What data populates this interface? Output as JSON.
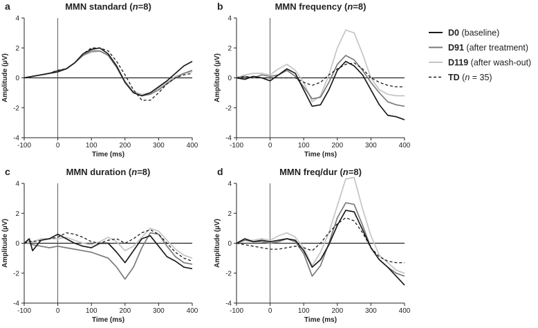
{
  "chart_data": [
    {
      "panel_label": "a",
      "title": "MMN standard (n=8)",
      "type": "line",
      "xlabel": "Time (ms)",
      "ylabel": "Amplitude (µV)",
      "xlim": [
        -100,
        400
      ],
      "ylim": [
        -4,
        4
      ],
      "xticks": [
        -100,
        0,
        100,
        200,
        300,
        400
      ],
      "yticks": [
        -4,
        -2,
        0,
        2,
        4
      ],
      "series": [
        {
          "name": "D0",
          "x": [
            -100,
            -75,
            -50,
            -25,
            0,
            25,
            50,
            75,
            100,
            125,
            150,
            175,
            200,
            225,
            250,
            275,
            300,
            325,
            350,
            375,
            400
          ],
          "y": [
            0,
            0.1,
            0.2,
            0.3,
            0.4,
            0.6,
            1.0,
            1.6,
            1.9,
            2.0,
            1.6,
            0.8,
            -0.3,
            -1.0,
            -1.2,
            -1.0,
            -0.6,
            -0.2,
            0.3,
            0.8,
            1.1
          ]
        },
        {
          "name": "D91",
          "x": [
            -100,
            -75,
            -50,
            -25,
            0,
            25,
            50,
            75,
            100,
            125,
            150,
            175,
            200,
            225,
            250,
            275,
            300,
            325,
            350,
            375,
            400
          ],
          "y": [
            0,
            0.1,
            0.2,
            0.3,
            0.5,
            0.6,
            1.0,
            1.5,
            1.8,
            1.8,
            1.5,
            0.7,
            -0.3,
            -1.0,
            -1.2,
            -1.1,
            -0.8,
            -0.4,
            0,
            0.3,
            0.5
          ]
        },
        {
          "name": "D119",
          "x": [
            -100,
            -75,
            -50,
            -25,
            0,
            25,
            50,
            75,
            100,
            125,
            150,
            175,
            200,
            225,
            250,
            275,
            300,
            325,
            350,
            375,
            400
          ],
          "y": [
            0,
            0.1,
            0.2,
            0.3,
            0.5,
            0.6,
            1.0,
            1.5,
            1.7,
            1.8,
            1.5,
            0.7,
            -0.2,
            -0.9,
            -1.1,
            -1.0,
            -0.7,
            -0.3,
            0.1,
            0.3,
            0.4
          ]
        },
        {
          "name": "TD",
          "x": [
            -100,
            -75,
            -50,
            -25,
            0,
            25,
            50,
            75,
            100,
            125,
            150,
            175,
            200,
            225,
            250,
            275,
            300,
            325,
            350,
            375,
            400
          ],
          "y": [
            0,
            0.1,
            0.2,
            0.3,
            0.5,
            0.6,
            1.0,
            1.6,
            2.0,
            2.0,
            1.8,
            1.1,
            0.2,
            -0.8,
            -1.5,
            -1.5,
            -1.0,
            -0.4,
            0,
            0.2,
            0.3
          ]
        }
      ]
    },
    {
      "panel_label": "b",
      "title": "MMN frequency (n=8)",
      "type": "line",
      "xlabel": "Time (ms)",
      "ylabel": "Amplitude (µV)",
      "xlim": [
        -100,
        400
      ],
      "ylim": [
        -4,
        4
      ],
      "xticks": [
        -100,
        0,
        100,
        200,
        300,
        400
      ],
      "yticks": [
        -4,
        -2,
        0,
        2,
        4
      ],
      "series": [
        {
          "name": "D0",
          "x": [
            -100,
            -75,
            -50,
            -25,
            0,
            25,
            50,
            75,
            100,
            125,
            150,
            175,
            200,
            225,
            250,
            275,
            300,
            325,
            350,
            375,
            400
          ],
          "y": [
            0,
            -0.1,
            0.1,
            0,
            -0.2,
            0.2,
            0.6,
            0.3,
            -0.8,
            -1.9,
            -1.8,
            -0.8,
            0.5,
            1.1,
            0.8,
            0.2,
            -0.8,
            -1.8,
            -2.5,
            -2.6,
            -2.8
          ]
        },
        {
          "name": "D91",
          "x": [
            -100,
            -75,
            -50,
            -25,
            0,
            25,
            50,
            75,
            100,
            125,
            150,
            175,
            200,
            225,
            250,
            275,
            300,
            325,
            350,
            375,
            400
          ],
          "y": [
            0,
            0.1,
            0,
            0.2,
            0.1,
            0.2,
            0.5,
            0.1,
            -0.6,
            -1.4,
            -1.3,
            -0.3,
            0.9,
            1.5,
            1.2,
            0.5,
            -0.3,
            -1.0,
            -1.6,
            -1.8,
            -1.9
          ]
        },
        {
          "name": "D119",
          "x": [
            -100,
            -75,
            -50,
            -25,
            0,
            25,
            50,
            75,
            100,
            125,
            150,
            175,
            200,
            225,
            250,
            275,
            300,
            325,
            350,
            375,
            400
          ],
          "y": [
            0,
            0.2,
            0.3,
            0.3,
            0.2,
            0.6,
            0.9,
            0.5,
            -0.3,
            -1.6,
            -1.2,
            0.2,
            2.0,
            3.2,
            3.0,
            1.6,
            0,
            -0.8,
            -1.1,
            -1.2,
            -1.2
          ]
        },
        {
          "name": "TD",
          "x": [
            -100,
            -75,
            -50,
            -25,
            0,
            25,
            50,
            75,
            100,
            125,
            150,
            175,
            200,
            225,
            250,
            275,
            300,
            325,
            350,
            375,
            400
          ],
          "y": [
            0,
            0.1,
            0,
            0,
            0,
            0,
            0,
            0,
            -0.3,
            -0.5,
            -0.3,
            0.2,
            0.6,
            0.9,
            1.0,
            0.6,
            0,
            -0.3,
            -0.5,
            -0.6,
            -0.6
          ]
        }
      ]
    },
    {
      "panel_label": "c",
      "title": "MMN duration (n=8)",
      "type": "line",
      "xlabel": "Time (ms)",
      "ylabel": "Amplitude (µV)",
      "xlim": [
        -100,
        400
      ],
      "ylim": [
        -4,
        4
      ],
      "xticks": [
        -100,
        0,
        100,
        200,
        300,
        400
      ],
      "yticks": [
        -4,
        -2,
        0,
        2,
        4
      ],
      "series": [
        {
          "name": "D0",
          "x": [
            -100,
            -85,
            -75,
            -50,
            -25,
            0,
            25,
            50,
            75,
            100,
            125,
            150,
            175,
            200,
            225,
            250,
            275,
            300,
            325,
            350,
            375,
            400
          ],
          "y": [
            0,
            0.3,
            -0.5,
            0.2,
            0.3,
            0.6,
            0.3,
            0,
            -0.2,
            -0.3,
            0,
            0,
            -0.6,
            -1.3,
            -0.5,
            0.3,
            0.5,
            -0.2,
            -0.9,
            -1.2,
            -1.6,
            -1.7
          ]
        },
        {
          "name": "D91",
          "x": [
            -100,
            -85,
            -75,
            -50,
            -25,
            0,
            25,
            50,
            75,
            100,
            125,
            150,
            175,
            200,
            225,
            250,
            275,
            300,
            325,
            350,
            375,
            400
          ],
          "y": [
            0,
            0,
            -0.1,
            -0.2,
            -0.3,
            -0.2,
            -0.3,
            -0.4,
            -0.5,
            -0.6,
            -0.8,
            -1.0,
            -1.6,
            -2.4,
            -1.6,
            -0.3,
            0.7,
            0.6,
            -0.2,
            -0.9,
            -1.3,
            -1.4
          ]
        },
        {
          "name": "D119",
          "x": [
            -100,
            -85,
            -75,
            -50,
            -25,
            0,
            25,
            50,
            75,
            100,
            125,
            150,
            175,
            200,
            225,
            250,
            275,
            300,
            325,
            350,
            375,
            400
          ],
          "y": [
            0,
            0.2,
            0.1,
            0.3,
            0.3,
            0.3,
            0.4,
            0.2,
            0,
            -0.1,
            0.1,
            0.4,
            0.1,
            -0.5,
            -0.2,
            0.4,
            1.0,
            0.8,
            0.2,
            -0.4,
            -0.8,
            -1.0
          ]
        },
        {
          "name": "TD",
          "x": [
            -100,
            -85,
            -75,
            -50,
            -25,
            0,
            25,
            50,
            75,
            100,
            125,
            150,
            175,
            200,
            225,
            250,
            275,
            300,
            325,
            350,
            375,
            400
          ],
          "y": [
            0,
            0.1,
            0.1,
            0.2,
            0.3,
            0.4,
            0.7,
            0.6,
            0.4,
            0.1,
            0,
            0.2,
            0.3,
            0,
            0.3,
            0.7,
            0.9,
            0.6,
            0,
            -0.6,
            -1.0,
            -1.2
          ]
        }
      ]
    },
    {
      "panel_label": "d",
      "title": "MMN freq/dur (n=8)",
      "type": "line",
      "xlabel": "Time (ms)",
      "ylabel": "Amplitude (µV)",
      "xlim": [
        -100,
        400
      ],
      "ylim": [
        -4,
        4
      ],
      "xticks": [
        -100,
        0,
        100,
        200,
        300,
        400
      ],
      "yticks": [
        -4,
        -2,
        0,
        2,
        4
      ],
      "series": [
        {
          "name": "D0",
          "x": [
            -100,
            -75,
            -50,
            -25,
            0,
            25,
            50,
            75,
            100,
            125,
            150,
            175,
            200,
            225,
            250,
            275,
            300,
            325,
            350,
            375,
            400
          ],
          "y": [
            0,
            0.3,
            0.1,
            0.2,
            0.1,
            0.2,
            0.3,
            0.2,
            -0.5,
            -1.6,
            -1.1,
            -0.1,
            1.2,
            2.2,
            2.1,
            0.9,
            -0.3,
            -1.1,
            -1.6,
            -2.2,
            -2.8
          ]
        },
        {
          "name": "D91",
          "x": [
            -100,
            -75,
            -50,
            -25,
            0,
            25,
            50,
            75,
            100,
            125,
            150,
            175,
            200,
            225,
            250,
            275,
            300,
            325,
            350,
            375,
            400
          ],
          "y": [
            0,
            0.2,
            0.1,
            0.1,
            0,
            0.1,
            0.3,
            0.1,
            -0.7,
            -2.2,
            -1.5,
            0,
            1.7,
            2.7,
            2.6,
            1.2,
            -0.3,
            -1.1,
            -1.6,
            -2.0,
            -2.2
          ]
        },
        {
          "name": "D119",
          "x": [
            -100,
            -75,
            -50,
            -25,
            0,
            25,
            50,
            75,
            100,
            125,
            150,
            175,
            200,
            225,
            250,
            275,
            300,
            325,
            350,
            375,
            400
          ],
          "y": [
            0,
            0.2,
            0.2,
            0.3,
            0.2,
            0.5,
            0.7,
            0.4,
            -0.3,
            -1.5,
            -0.6,
            0.7,
            2.5,
            4.3,
            4.4,
            2.3,
            0.5,
            -0.8,
            -1.3,
            -1.8,
            -2.0
          ]
        },
        {
          "name": "TD",
          "x": [
            -100,
            -75,
            -50,
            -25,
            0,
            25,
            50,
            75,
            100,
            125,
            150,
            175,
            200,
            225,
            250,
            275,
            300,
            325,
            350,
            375,
            400
          ],
          "y": [
            0,
            -0.1,
            -0.2,
            -0.3,
            -0.4,
            -0.4,
            -0.3,
            -0.2,
            -0.3,
            -0.5,
            0,
            0.7,
            1.3,
            1.7,
            1.5,
            0.7,
            -0.3,
            -0.9,
            -1.2,
            -1.3,
            -1.3
          ]
        }
      ]
    }
  ],
  "legend": [
    {
      "name": "D0",
      "desc": "(baseline)",
      "color": "#1a1a1a",
      "dash": false
    },
    {
      "name": "D91",
      "desc": "(after treatment)",
      "color": "#7a7a7a",
      "dash": false
    },
    {
      "name": "D119",
      "desc": "(after wash-out)",
      "color": "#c4c4c4",
      "dash": false
    },
    {
      "name": "TD",
      "desc": "(n = 35)",
      "color": "#1a1a1a",
      "dash": true
    }
  ],
  "series_colors": {
    "D0": "#1a1a1a",
    "D91": "#7a7a7a",
    "D119": "#c4c4c4",
    "TD": "#1a1a1a"
  }
}
